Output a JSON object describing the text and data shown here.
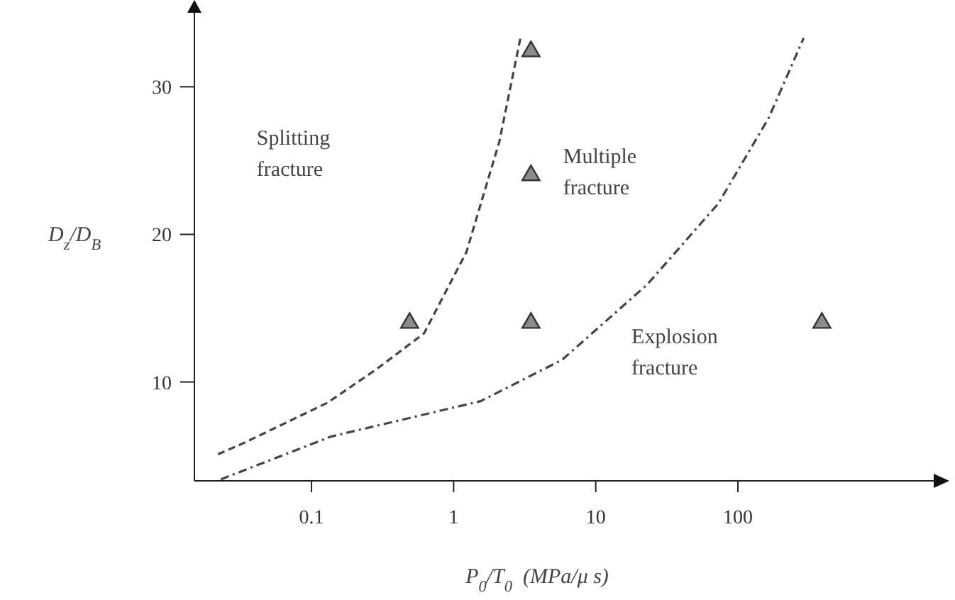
{
  "chart_data": {
    "type": "scatter",
    "xlabel": "P$_{0}$/T$_{0}$  (MPa/μ s)",
    "ylabel": "D$_{z}$/D$_{B}$",
    "log": "x",
    "xlim": [
      0.015,
      2500
    ],
    "xticks": [
      0.1,
      1,
      10,
      100
    ],
    "ylim": [
      3.3,
      35.4
    ],
    "yticks": [
      10,
      20,
      30
    ],
    "marker": "triangle",
    "series": [
      {
        "color": "#8c8c8c",
        "x": [
          0.49,
          3.5,
          3.5,
          3.5,
          390
        ],
        "values": [
          14,
          14,
          24,
          32.4,
          14
        ]
      },
      {
        "type": "line",
        "color": "#444444",
        "line_style": "dashed",
        "marker": "none",
        "x": [
          0.022,
          0.034,
          0.13,
          0.29,
          0.62,
          1.23,
          2.1,
          2.95
        ],
        "values": [
          5.1,
          5.9,
          8.6,
          10.9,
          13.3,
          18.8,
          26.3,
          33.3
        ]
      },
      {
        "type": "line",
        "color": "#444444",
        "line_style": "dashdot",
        "marker": "none",
        "x": [
          0.023,
          0.137,
          1.55,
          5.8,
          23,
          73,
          165,
          290
        ],
        "values": [
          3.4,
          6.3,
          8.7,
          11.5,
          16.6,
          22.1,
          27.9,
          33.3
        ]
      }
    ],
    "annotations": [
      "Splitting\nfracture",
      "Multiple\nfracture",
      "Explosion\nfracture"
    ]
  }
}
